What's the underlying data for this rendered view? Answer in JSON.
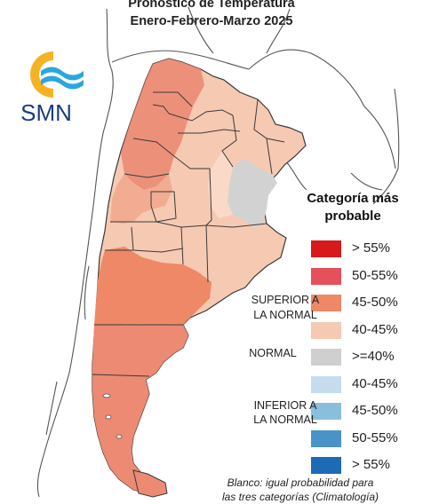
{
  "title": {
    "line1": "Pronóstico de Temperatura",
    "line2": "Enero-Febrero-Marzo 2025"
  },
  "logo": {
    "text": "SMN",
    "colors": {
      "sun": "#f5b324",
      "waves": "#2aa7dc",
      "text": "#1a3d7c"
    }
  },
  "legend": {
    "title_line1": "Categoría más",
    "title_line2": "probable",
    "items": [
      {
        "label": "> 55%",
        "color": "#d7191c"
      },
      {
        "label": "50-55%",
        "color": "#e5505a"
      },
      {
        "label": "45-50%",
        "color": "#ee8866"
      },
      {
        "label": "40-45%",
        "color": "#f6c9b3"
      },
      {
        "label": ">=40%",
        "color": "#cfcfcf"
      },
      {
        "label": "40-45%",
        "color": "#c6dcee"
      },
      {
        "label": "45-50%",
        "color": "#89bedd"
      },
      {
        "label": "50-55%",
        "color": "#4a93c9"
      },
      {
        "label": "> 55%",
        "color": "#1c6bb4"
      }
    ],
    "groups": {
      "superior_line1": "SUPERIOR A",
      "superior_line2": "LA NORMAL",
      "normal": "NORMAL",
      "inferior_line1": "INFERIOR A",
      "inferior_line2": "LA NORMAL"
    }
  },
  "footnote": {
    "line1": "Blanco: igual probabilidad para",
    "line2": "las tres categorías (Climatología)"
  },
  "map_colors": {
    "deep": "#ec8a73",
    "mid": "#f2a88e",
    "light": "#f6c9b3",
    "pale": "#fad9c8",
    "normal": "#d2d2d2",
    "outline": "#3a3a3a"
  }
}
